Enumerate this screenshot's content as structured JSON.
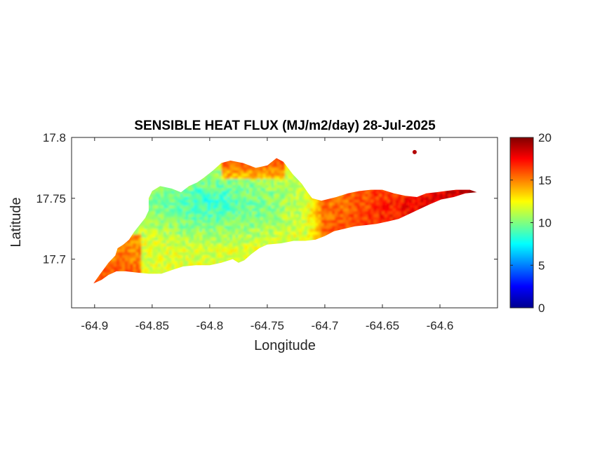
{
  "chart_data": {
    "type": "heatmap",
    "title": "SENSIBLE HEAT FLUX (MJ/m2/day) 28-Jul-2025",
    "xlabel": "Longitude",
    "ylabel": "Latitude",
    "xlim": [
      -64.92,
      -64.55
    ],
    "ylim": [
      17.66,
      17.8
    ],
    "x_ticks": [
      -64.9,
      -64.85,
      -64.8,
      -64.75,
      -64.7,
      -64.65,
      -64.6
    ],
    "x_tick_labels": [
      "-64.9",
      "-64.85",
      "-64.8",
      "-64.75",
      "-64.7",
      "-64.65",
      "-64.6"
    ],
    "y_ticks": [
      17.7,
      17.75,
      17.8
    ],
    "y_tick_labels": [
      "17.7",
      "17.75",
      "17.8"
    ],
    "colorbar": {
      "colormap": "jet",
      "range": [
        0,
        20
      ],
      "ticks": [
        0,
        5,
        10,
        15,
        20
      ],
      "tick_labels": [
        "0",
        "5",
        "10",
        "15",
        "20"
      ]
    },
    "grid": false,
    "island_outline": [
      [
        -64.901,
        17.68
      ],
      [
        -64.895,
        17.688
      ],
      [
        -64.888,
        17.697
      ],
      [
        -64.882,
        17.703
      ],
      [
        -64.88,
        17.709
      ],
      [
        -64.875,
        17.712
      ],
      [
        -64.87,
        17.716
      ],
      [
        -64.866,
        17.722
      ],
      [
        -64.861,
        17.728
      ],
      [
        -64.856,
        17.734
      ],
      [
        -64.853,
        17.74
      ],
      [
        -64.853,
        17.75
      ],
      [
        -64.85,
        17.756
      ],
      [
        -64.843,
        17.76
      ],
      [
        -64.833,
        17.758
      ],
      [
        -64.825,
        17.755
      ],
      [
        -64.818,
        17.76
      ],
      [
        -64.811,
        17.763
      ],
      [
        -64.805,
        17.767
      ],
      [
        -64.797,
        17.773
      ],
      [
        -64.79,
        17.779
      ],
      [
        -64.782,
        17.781
      ],
      [
        -64.771,
        17.779
      ],
      [
        -64.76,
        17.775
      ],
      [
        -64.75,
        17.777
      ],
      [
        -64.742,
        17.783
      ],
      [
        -64.736,
        17.78
      ],
      [
        -64.728,
        17.77
      ],
      [
        -64.72,
        17.762
      ],
      [
        -64.715,
        17.755
      ],
      [
        -64.711,
        17.75
      ],
      [
        -64.703,
        17.748
      ],
      [
        -64.69,
        17.751
      ],
      [
        -64.68,
        17.754
      ],
      [
        -64.67,
        17.756
      ],
      [
        -64.66,
        17.757
      ],
      [
        -64.65,
        17.757
      ],
      [
        -64.64,
        17.754
      ],
      [
        -64.63,
        17.752
      ],
      [
        -64.62,
        17.751
      ],
      [
        -64.612,
        17.754
      ],
      [
        -64.603,
        17.755
      ],
      [
        -64.595,
        17.756
      ],
      [
        -64.586,
        17.757
      ],
      [
        -64.574,
        17.757
      ],
      [
        -64.568,
        17.755
      ],
      [
        -64.578,
        17.754
      ],
      [
        -64.588,
        17.751
      ],
      [
        -64.599,
        17.749
      ],
      [
        -64.609,
        17.745
      ],
      [
        -64.618,
        17.741
      ],
      [
        -64.627,
        17.737
      ],
      [
        -64.636,
        17.733
      ],
      [
        -64.645,
        17.731
      ],
      [
        -64.655,
        17.729
      ],
      [
        -64.664,
        17.728
      ],
      [
        -64.674,
        17.727
      ],
      [
        -64.683,
        17.725
      ],
      [
        -64.692,
        17.723
      ],
      [
        -64.7,
        17.719
      ],
      [
        -64.708,
        17.716
      ],
      [
        -64.717,
        17.715
      ],
      [
        -64.727,
        17.715
      ],
      [
        -64.738,
        17.713
      ],
      [
        -64.75,
        17.712
      ],
      [
        -64.757,
        17.709
      ],
      [
        -64.764,
        17.704
      ],
      [
        -64.77,
        17.699
      ],
      [
        -64.775,
        17.697
      ],
      [
        -64.78,
        17.7
      ],
      [
        -64.79,
        17.697
      ],
      [
        -64.8,
        17.695
      ],
      [
        -64.812,
        17.695
      ],
      [
        -64.823,
        17.694
      ],
      [
        -64.833,
        17.691
      ],
      [
        -64.842,
        17.688
      ],
      [
        -64.853,
        17.688
      ],
      [
        -64.863,
        17.689
      ],
      [
        -64.873,
        17.69
      ],
      [
        -64.881,
        17.69
      ],
      [
        -64.888,
        17.687
      ],
      [
        -64.894,
        17.683
      ]
    ],
    "islet": {
      "lon": -64.622,
      "lat": 17.788,
      "value": 19
    }
  }
}
